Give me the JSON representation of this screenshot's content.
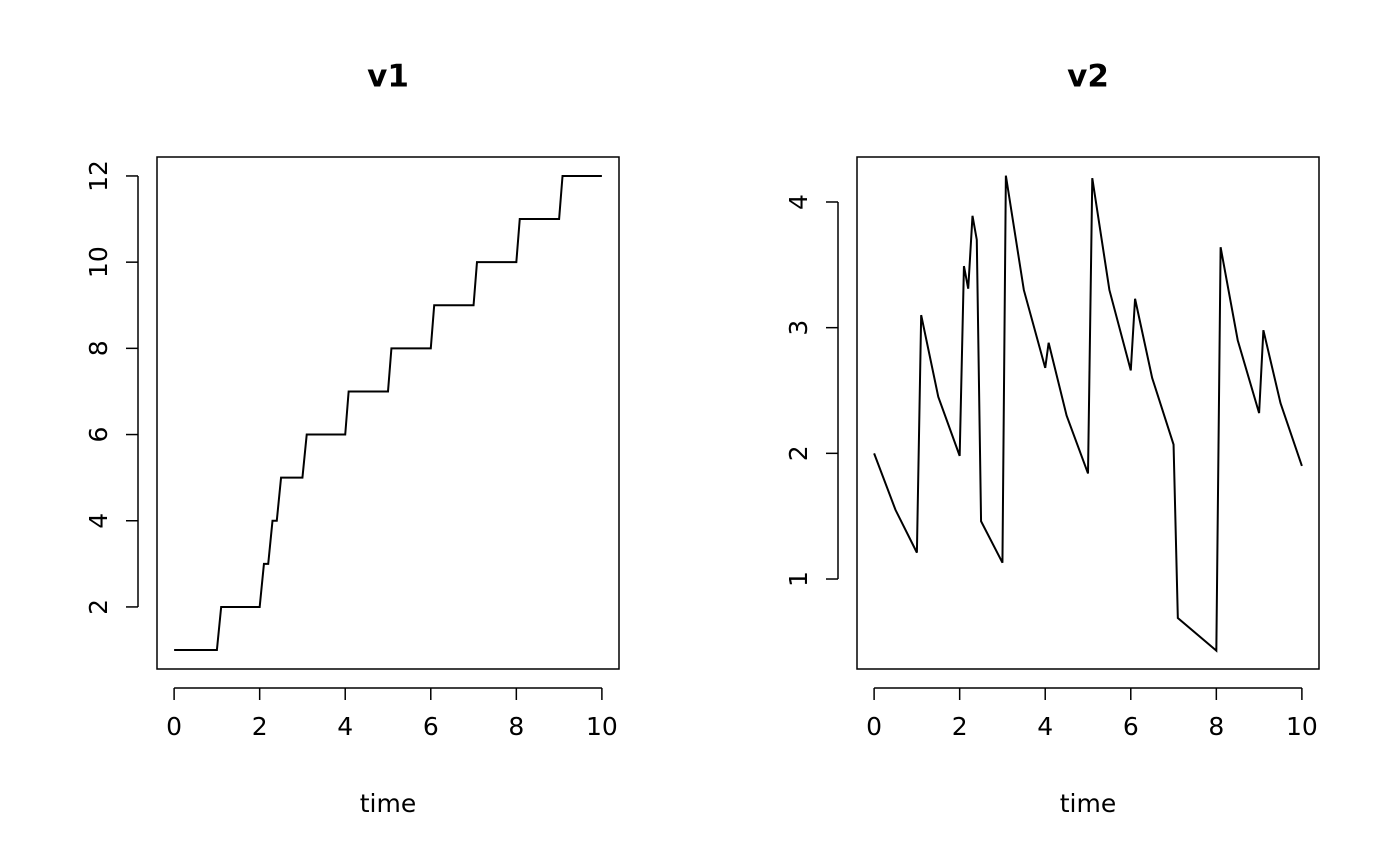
{
  "chart_data": [
    {
      "type": "line",
      "title": "v1",
      "xlabel": "time",
      "color": "#000000",
      "x": [
        0,
        1,
        1.1,
        2,
        2.1,
        2.2,
        2.3,
        2.4,
        2.5,
        3,
        3.1,
        4,
        4.08,
        5,
        5.08,
        6,
        6.08,
        7,
        7.08,
        8,
        8.08,
        9,
        9.08,
        10
      ],
      "values": [
        1,
        1,
        2,
        2,
        3,
        3,
        4,
        4,
        5,
        5,
        6,
        6,
        7,
        7,
        8,
        8,
        9,
        9,
        10,
        10,
        11,
        11,
        12,
        12
      ],
      "xlim": [
        -0.4,
        10.4
      ],
      "ylim": [
        0.56,
        12.44
      ],
      "xticks": [
        0,
        2,
        4,
        6,
        8,
        10
      ],
      "yticks": [
        2,
        4,
        6,
        8,
        10,
        12
      ]
    },
    {
      "type": "line",
      "title": "v2",
      "xlabel": "time",
      "color": "#000000",
      "x": [
        0,
        0.5,
        1,
        1.1,
        1.5,
        2,
        2.1,
        2.2,
        2.3,
        2.4,
        2.5,
        3,
        3.08,
        3.5,
        4,
        4.08,
        4.5,
        5,
        5.1,
        5.5,
        6,
        6.1,
        6.5,
        7,
        7.1,
        8,
        8.1,
        8.5,
        9,
        9.1,
        9.5,
        10
      ],
      "values": [
        2,
        1.55,
        1.21,
        3.1,
        2.45,
        1.98,
        3.49,
        3.31,
        3.89,
        3.7,
        1.46,
        1.13,
        4.21,
        3.3,
        2.68,
        2.88,
        2.3,
        1.84,
        4.19,
        3.3,
        2.66,
        3.23,
        2.6,
        2.07,
        0.69,
        0.43,
        3.64,
        2.9,
        2.32,
        2.98,
        2.4,
        1.9
      ],
      "xlim": [
        -0.4,
        10.4
      ],
      "ylim": [
        0.284,
        4.358
      ],
      "xticks": [
        0,
        2,
        4,
        6,
        8,
        10
      ],
      "yticks": [
        1,
        2,
        3,
        4
      ]
    }
  ]
}
